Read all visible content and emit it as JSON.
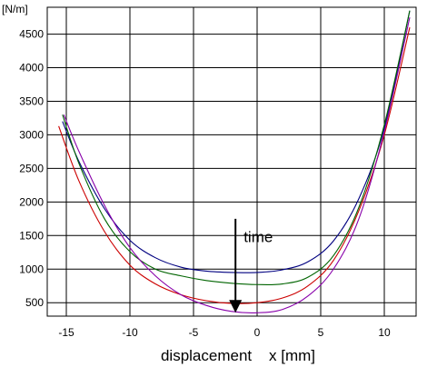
{
  "chart_data": {
    "type": "line",
    "title": "",
    "ylabel": "[N/m]",
    "xlabel": "displacement    x [mm]",
    "xlim": [
      -16.5,
      12.5
    ],
    "ylim": [
      300,
      4900
    ],
    "x_ticks": [
      -15,
      -10,
      -5,
      0,
      5,
      10
    ],
    "y_ticks": [
      500,
      1000,
      1500,
      2000,
      2500,
      3000,
      3500,
      4000,
      4500
    ],
    "x_tick_labels": [
      "-15",
      "-10",
      "-5",
      "0",
      "5",
      "10"
    ],
    "y_tick_labels": [
      "500",
      "1000",
      "1500",
      "2000",
      "2500",
      "3000",
      "3500",
      "4000",
      "4500"
    ],
    "grid": true,
    "legend": "none",
    "annotation": {
      "text": "time",
      "arrow_x": -1.7,
      "arrow_y_from": 1750,
      "arrow_y_to": 350
    },
    "series": [
      {
        "color": "#000080",
        "x": [
          -15.3,
          -14,
          -12,
          -10,
          -8,
          -6,
          -4,
          -2,
          0,
          2,
          4,
          6,
          8,
          10,
          12
        ],
        "y": [
          3200,
          2600,
          1900,
          1430,
          1170,
          1030,
          970,
          950,
          950,
          990,
          1110,
          1420,
          2050,
          3100,
          4850
        ]
      },
      {
        "color": "#006400",
        "x": [
          -15.3,
          -14,
          -12,
          -10,
          -8,
          -6,
          -4,
          -2,
          0,
          2,
          4,
          6,
          8,
          10,
          12
        ],
        "y": [
          3300,
          2570,
          1750,
          1260,
          1000,
          900,
          830,
          790,
          770,
          780,
          880,
          1200,
          1920,
          3150,
          4850
        ]
      },
      {
        "color": "#cc0000",
        "x": [
          -15.6,
          -14,
          -12,
          -10,
          -8,
          -6,
          -4,
          -2,
          0,
          2,
          4,
          6,
          8,
          10,
          12
        ],
        "y": [
          3130,
          2310,
          1560,
          1060,
          780,
          620,
          530,
          490,
          500,
          570,
          750,
          1130,
          1870,
          3000,
          4600
        ]
      },
      {
        "color": "#8800aa",
        "x": [
          -15.2,
          -14,
          -12,
          -10,
          -8,
          -6,
          -4,
          -2,
          0,
          2,
          4,
          6,
          8,
          10,
          12
        ],
        "y": [
          3300,
          2750,
          1950,
          1320,
          900,
          620,
          460,
          370,
          350,
          400,
          600,
          1000,
          1750,
          3050,
          4750
        ]
      }
    ]
  }
}
